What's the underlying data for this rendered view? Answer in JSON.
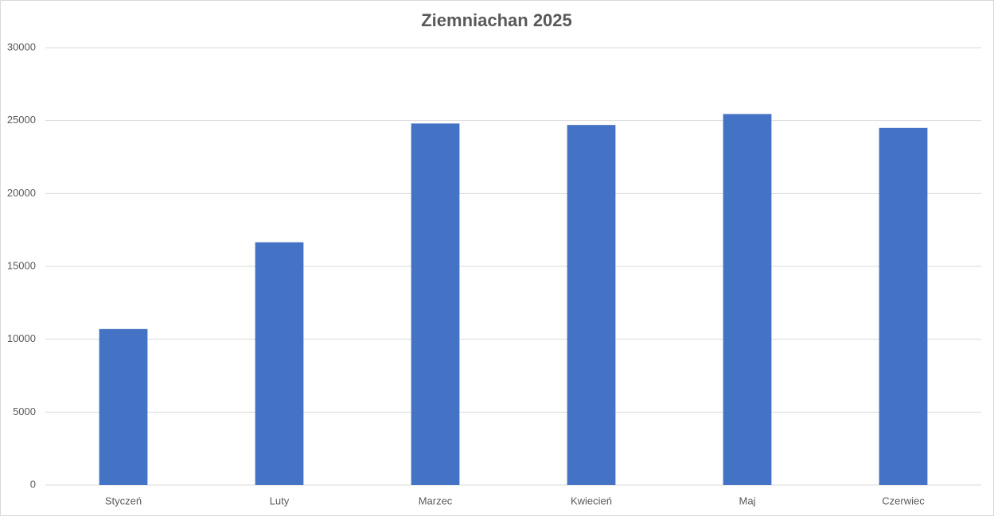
{
  "chart_data": {
    "type": "bar",
    "title": "Ziemniachan 2025",
    "categories": [
      "Styczeń",
      "Luty",
      "Marzec",
      "Kwiecień",
      "Maj",
      "Czerwiec"
    ],
    "values": [
      10700,
      16650,
      24800,
      24700,
      25450,
      24500
    ],
    "color": "#4472c4",
    "ylim": [
      0,
      30000
    ],
    "yticks": [
      0,
      5000,
      10000,
      15000,
      20000,
      25000,
      30000
    ],
    "grid": true
  }
}
